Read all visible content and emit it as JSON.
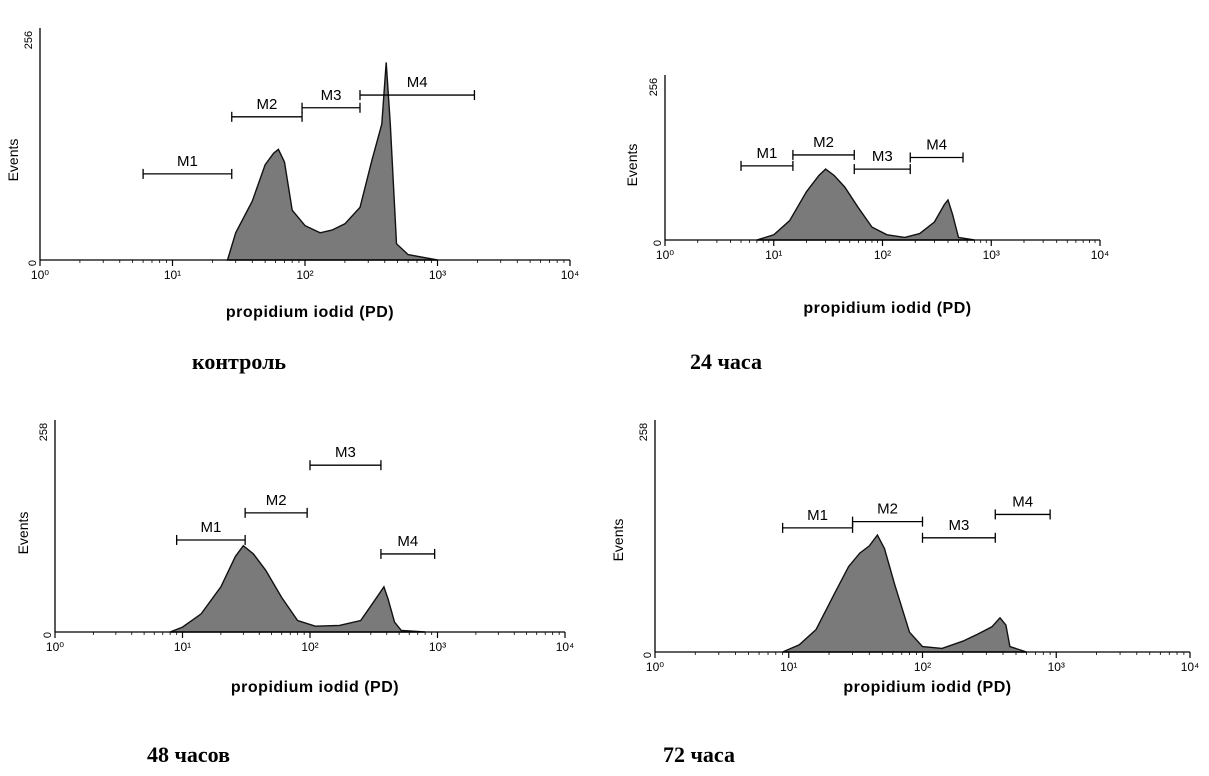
{
  "chart_data": [
    {
      "type": "area",
      "caption": "контроль",
      "xlabel": "propidium iodid (PD)",
      "ylabel": "Events",
      "x_scale": "log",
      "xlim": [
        1,
        10000
      ],
      "ylim": [
        0,
        256
      ],
      "y_ticks": [
        "0",
        "256"
      ],
      "x_ticks": [
        "10⁰",
        "10¹",
        "10²",
        "10³",
        "10⁴"
      ],
      "fill": "#7a7a7a",
      "histogram": [
        [
          26,
          0
        ],
        [
          30,
          30
        ],
        [
          40,
          65
        ],
        [
          50,
          105
        ],
        [
          58,
          118
        ],
        [
          63,
          122
        ],
        [
          70,
          108
        ],
        [
          80,
          55
        ],
        [
          100,
          38
        ],
        [
          130,
          30
        ],
        [
          160,
          33
        ],
        [
          200,
          40
        ],
        [
          260,
          58
        ],
        [
          320,
          110
        ],
        [
          380,
          150
        ],
        [
          410,
          218
        ],
        [
          440,
          150
        ],
        [
          490,
          18
        ],
        [
          600,
          6
        ],
        [
          1000,
          0
        ]
      ],
      "markers": [
        {
          "label": "M1",
          "x": [
            6,
            28
          ],
          "y": 95
        },
        {
          "label": "M2",
          "x": [
            28,
            95
          ],
          "y": 158
        },
        {
          "label": "M3",
          "x": [
            95,
            260
          ],
          "y": 168
        },
        {
          "label": "M4",
          "x": [
            260,
            1900
          ],
          "y": 182
        }
      ]
    },
    {
      "type": "area",
      "caption": "24 часа",
      "xlabel": "propidium iodid (PD)",
      "ylabel": "Events",
      "x_scale": "log",
      "xlim": [
        1,
        10000
      ],
      "ylim": [
        0,
        256
      ],
      "y_ticks": [
        "0",
        "256"
      ],
      "x_ticks": [
        "10⁰",
        "10¹",
        "10²",
        "10³",
        "10⁴"
      ],
      "fill": "#7a7a7a",
      "histogram": [
        [
          7,
          0
        ],
        [
          10,
          8
        ],
        [
          14,
          30
        ],
        [
          20,
          75
        ],
        [
          26,
          100
        ],
        [
          30,
          110
        ],
        [
          36,
          100
        ],
        [
          45,
          82
        ],
        [
          60,
          50
        ],
        [
          80,
          20
        ],
        [
          110,
          8
        ],
        [
          160,
          4
        ],
        [
          220,
          10
        ],
        [
          300,
          28
        ],
        [
          370,
          55
        ],
        [
          400,
          62
        ],
        [
          440,
          40
        ],
        [
          500,
          4
        ],
        [
          700,
          0
        ]
      ],
      "markers": [
        {
          "label": "M1",
          "x": [
            5,
            15
          ],
          "y": 115
        },
        {
          "label": "M2",
          "x": [
            15,
            55
          ],
          "y": 132
        },
        {
          "label": "M3",
          "x": [
            55,
            180
          ],
          "y": 110
        },
        {
          "label": "M4",
          "x": [
            180,
            550
          ],
          "y": 128
        }
      ]
    },
    {
      "type": "area",
      "caption": "48 часов",
      "xlabel": "propidium iodid (PD)",
      "ylabel": "Events",
      "x_scale": "log",
      "xlim": [
        1,
        10000
      ],
      "ylim": [
        0,
        258
      ],
      "y_ticks": [
        "0",
        "258"
      ],
      "x_ticks": [
        "10⁰",
        "10¹",
        "10²",
        "10³",
        "10⁴"
      ],
      "fill": "#7a7a7a",
      "histogram": [
        [
          8,
          0
        ],
        [
          10,
          6
        ],
        [
          14,
          22
        ],
        [
          20,
          55
        ],
        [
          26,
          92
        ],
        [
          30,
          105
        ],
        [
          36,
          95
        ],
        [
          45,
          75
        ],
        [
          60,
          42
        ],
        [
          80,
          14
        ],
        [
          110,
          7
        ],
        [
          170,
          8
        ],
        [
          250,
          14
        ],
        [
          320,
          38
        ],
        [
          380,
          55
        ],
        [
          410,
          40
        ],
        [
          460,
          12
        ],
        [
          520,
          2
        ],
        [
          800,
          0
        ]
      ],
      "markers": [
        {
          "label": "M1",
          "x": [
            9,
            31
          ],
          "y": 112
        },
        {
          "label": "M2",
          "x": [
            31,
            95
          ],
          "y": 145
        },
        {
          "label": "M3",
          "x": [
            100,
            360
          ],
          "y": 203
        },
        {
          "label": "M4",
          "x": [
            360,
            950
          ],
          "y": 95
        }
      ]
    },
    {
      "type": "area",
      "caption": "72 часа",
      "xlabel": "propidium iodid (PD)",
      "ylabel": "Events",
      "x_scale": "log",
      "xlim": [
        1,
        10000
      ],
      "ylim": [
        0,
        258
      ],
      "y_ticks": [
        "0",
        "258"
      ],
      "x_ticks": [
        "10⁰",
        "10¹",
        "10²",
        "10³",
        "10⁴"
      ],
      "fill": "#7a7a7a",
      "histogram": [
        [
          9,
          0
        ],
        [
          12,
          8
        ],
        [
          16,
          25
        ],
        [
          22,
          65
        ],
        [
          28,
          95
        ],
        [
          34,
          110
        ],
        [
          40,
          118
        ],
        [
          46,
          130
        ],
        [
          52,
          115
        ],
        [
          62,
          75
        ],
        [
          80,
          22
        ],
        [
          100,
          6
        ],
        [
          140,
          4
        ],
        [
          200,
          12
        ],
        [
          260,
          20
        ],
        [
          330,
          28
        ],
        [
          380,
          38
        ],
        [
          420,
          30
        ],
        [
          450,
          6
        ],
        [
          600,
          0
        ]
      ],
      "markers": [
        {
          "label": "M1",
          "x": [
            9,
            30
          ],
          "y": 138
        },
        {
          "label": "M2",
          "x": [
            30,
            100
          ],
          "y": 145
        },
        {
          "label": "M3",
          "x": [
            100,
            350
          ],
          "y": 127
        },
        {
          "label": "M4",
          "x": [
            350,
            900
          ],
          "y": 153
        }
      ]
    }
  ]
}
